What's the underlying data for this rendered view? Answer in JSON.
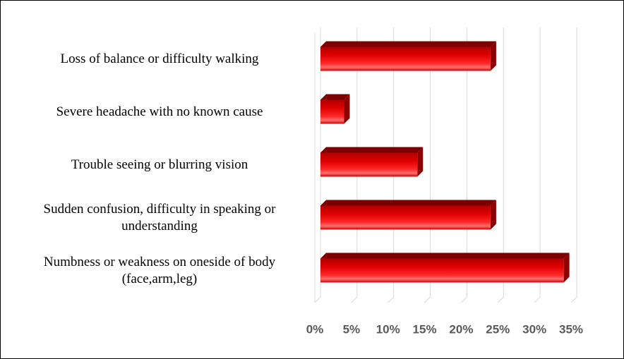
{
  "chart_data": {
    "type": "bar",
    "orientation": "horizontal",
    "categories": [
      "Loss of balance or difficulty walking",
      "Severe headache with no known cause",
      "Trouble seeing or blurring vision",
      "Sudden confusion, difficulty in speaking or understanding",
      "Numbness or weakness on oneside of body (face,arm,leg)"
    ],
    "values": [
      24,
      4,
      14,
      24,
      34
    ],
    "color": "#e00000",
    "xlim": [
      0,
      35
    ],
    "xticks": [
      {
        "value": 0,
        "label": "0%"
      },
      {
        "value": 5,
        "label": "5%"
      },
      {
        "value": 10,
        "label": "10%"
      },
      {
        "value": 15,
        "label": "15%"
      },
      {
        "value": 20,
        "label": "20%"
      },
      {
        "value": 25,
        "label": "25%"
      },
      {
        "value": 30,
        "label": "30%"
      },
      {
        "value": 35,
        "label": "35%"
      }
    ],
    "grid": true
  }
}
